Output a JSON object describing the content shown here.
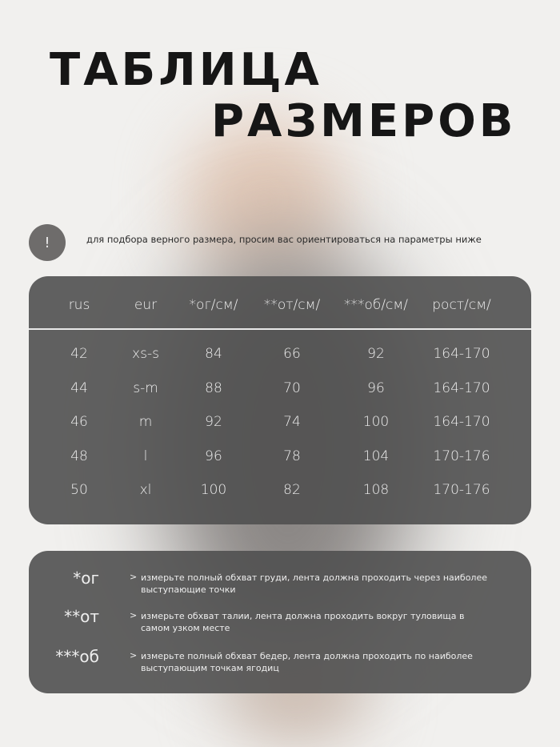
{
  "title": {
    "line1": "ТАБЛИЦА",
    "line2": "РАЗМЕРОВ"
  },
  "hint": {
    "icon": "exclamation-icon",
    "symbol": "!",
    "text": "для подбора верного размера, просим вас ориентироваться на параметры ниже"
  },
  "table": {
    "columns": [
      "rus",
      "eur",
      "*ог/см/",
      "**от/см/",
      "***об/см/",
      "рост/см/"
    ],
    "rows": [
      [
        "42",
        "xs-s",
        "84",
        "66",
        "92",
        "164-170"
      ],
      [
        "44",
        "s-m",
        "88",
        "70",
        "96",
        "164-170"
      ],
      [
        "46",
        "m",
        "92",
        "74",
        "100",
        "164-170"
      ],
      [
        "48",
        "l",
        "96",
        "78",
        "104",
        "170-176"
      ],
      [
        "50",
        "xl",
        "100",
        "82",
        "108",
        "170-176"
      ]
    ]
  },
  "notes": [
    {
      "label": "*ог",
      "arrow": ">",
      "text": "измерьте полный обхват груди, лента должна проходить через наиболее выступающие точки"
    },
    {
      "label": "**от",
      "arrow": ">",
      "text": "измерьте обхват талии, лента должна проходить вокруг туловища в самом узком месте"
    },
    {
      "label": "***об",
      "arrow": ">",
      "text": "измерьте полный обхват бедер, лента должна проходить по наиболее выступающим точкам ягодиц"
    }
  ],
  "colors": {
    "background": "#f1f0ee",
    "card": "#505050",
    "text_light": "#eeeeee",
    "title": "#161616"
  }
}
